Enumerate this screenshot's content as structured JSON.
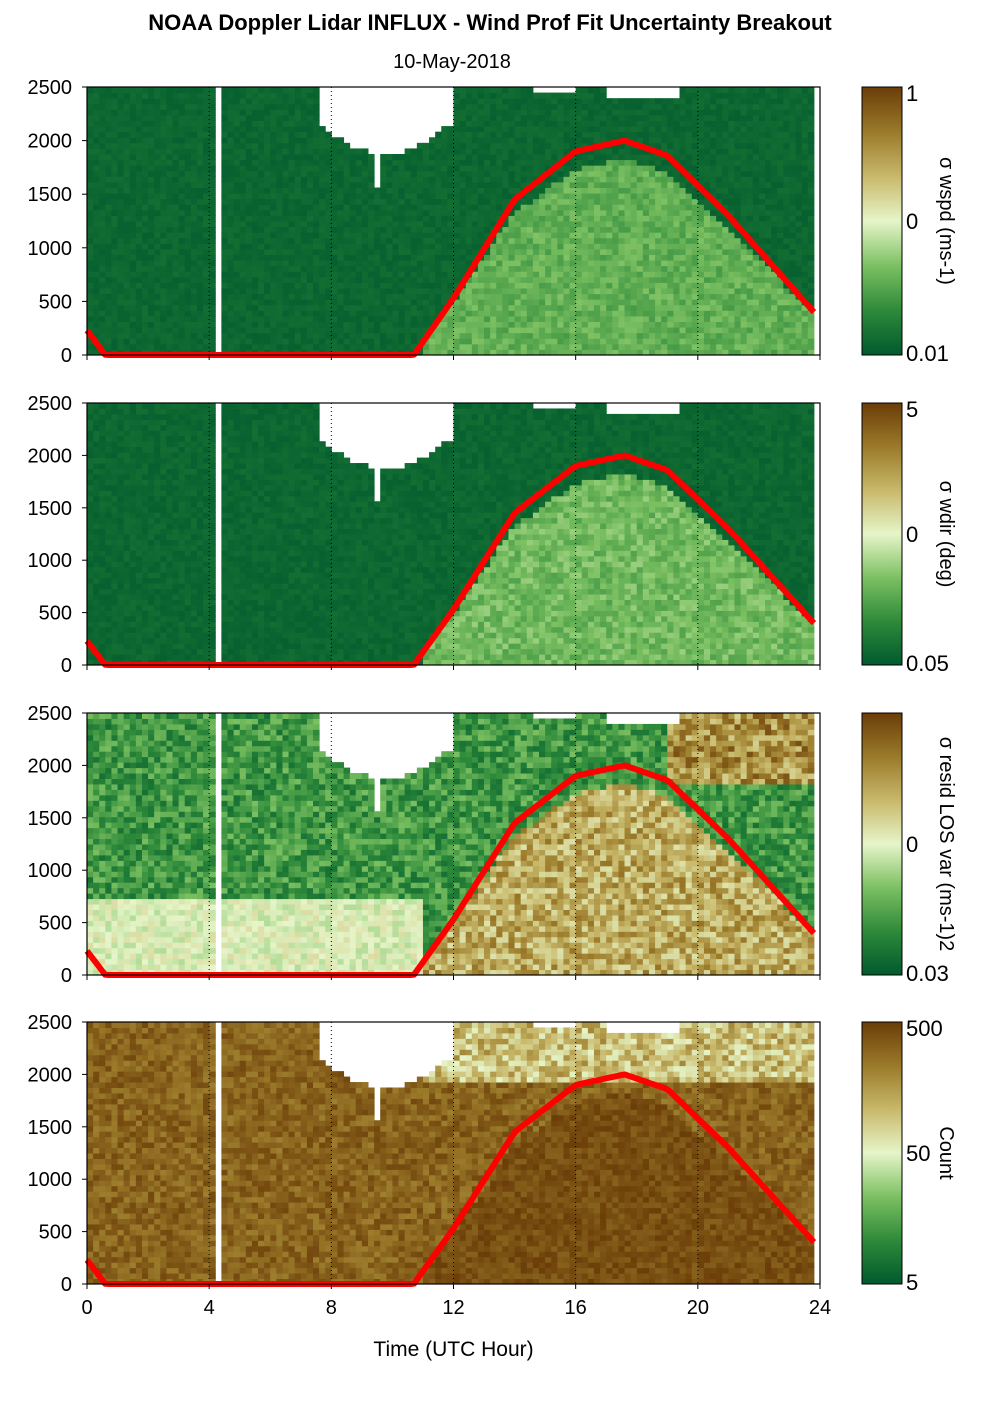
{
  "header": {
    "title": "NOAA Doppler Lidar INFLUX - Wind Prof Fit Uncertainty Breakout",
    "date": "10-May-2018"
  },
  "colormap": [
    "#005a2e",
    "#2e8a3a",
    "#7cc062",
    "#e6f5c9",
    "#c8b86a",
    "#9a7a2a",
    "#6b3d08"
  ],
  "line_color": "#ff0000",
  "chart_data": [
    {
      "type": "heatmap",
      "ylim": [
        0,
        2500
      ],
      "yticks": [
        "0",
        "500",
        "1000",
        "1500",
        "2000",
        "2500"
      ],
      "xlim": [
        0,
        24
      ],
      "colorbar": {
        "label": "σ wspd (ms-1)",
        "ticks": [
          "1",
          "0",
          "0.01"
        ],
        "scale": "log"
      },
      "data_gap_hours": [
        4.1,
        4.45
      ],
      "sun_elevation_curve": {
        "x": [
          0,
          0.6,
          10.7,
          12,
          14,
          16,
          17.6,
          19,
          21,
          23.8
        ],
        "y": [
          230,
          0,
          0,
          530,
          1450,
          1900,
          2000,
          1860,
          1300,
          400
        ]
      }
    },
    {
      "type": "heatmap",
      "ylim": [
        0,
        2500
      ],
      "yticks": [
        "0",
        "500",
        "1000",
        "1500",
        "2000",
        "2500"
      ],
      "xlim": [
        0,
        24
      ],
      "colorbar": {
        "label": "σ wdir (deg)",
        "ticks": [
          "5",
          "0",
          "0.05"
        ],
        "scale": "log"
      },
      "data_gap_hours": [
        4.1,
        4.45
      ],
      "sun_elevation_curve": {
        "x": [
          0,
          0.6,
          10.7,
          12,
          14,
          16,
          17.6,
          19,
          21,
          23.8
        ],
        "y": [
          230,
          0,
          0,
          530,
          1450,
          1900,
          2000,
          1860,
          1300,
          400
        ]
      }
    },
    {
      "type": "heatmap",
      "ylim": [
        0,
        2500
      ],
      "yticks": [
        "0",
        "500",
        "1000",
        "1500",
        "2000",
        "2500"
      ],
      "xlim": [
        0,
        24
      ],
      "colorbar": {
        "label": "σ resid LOS var (ms-1)2",
        "ticks": [
          "0",
          "0.03"
        ],
        "scale": "log"
      },
      "data_gap_hours": [
        4.1,
        4.45
      ],
      "sun_elevation_curve": {
        "x": [
          0,
          0.6,
          10.7,
          12,
          14,
          16,
          17.6,
          19,
          21,
          23.8
        ],
        "y": [
          230,
          0,
          0,
          530,
          1450,
          1900,
          2000,
          1860,
          1300,
          400
        ]
      }
    },
    {
      "type": "heatmap",
      "ylim": [
        0,
        2500
      ],
      "yticks": [
        "0",
        "500",
        "1000",
        "1500",
        "2000",
        "2500"
      ],
      "xlim": [
        0,
        24
      ],
      "xticks": [
        "0",
        "4",
        "8",
        "12",
        "16",
        "20",
        "24"
      ],
      "xlabel": "Time (UTC Hour)",
      "colorbar": {
        "label": "Count",
        "ticks": [
          "500",
          "50",
          "5"
        ],
        "scale": "log"
      },
      "data_gap_hours": [
        4.1,
        4.45
      ],
      "sun_elevation_curve": {
        "x": [
          0,
          0.6,
          10.7,
          12,
          14,
          16,
          17.6,
          19,
          21,
          23.8
        ],
        "y": [
          230,
          0,
          0,
          530,
          1450,
          1900,
          2000,
          1860,
          1300,
          400
        ]
      }
    }
  ]
}
